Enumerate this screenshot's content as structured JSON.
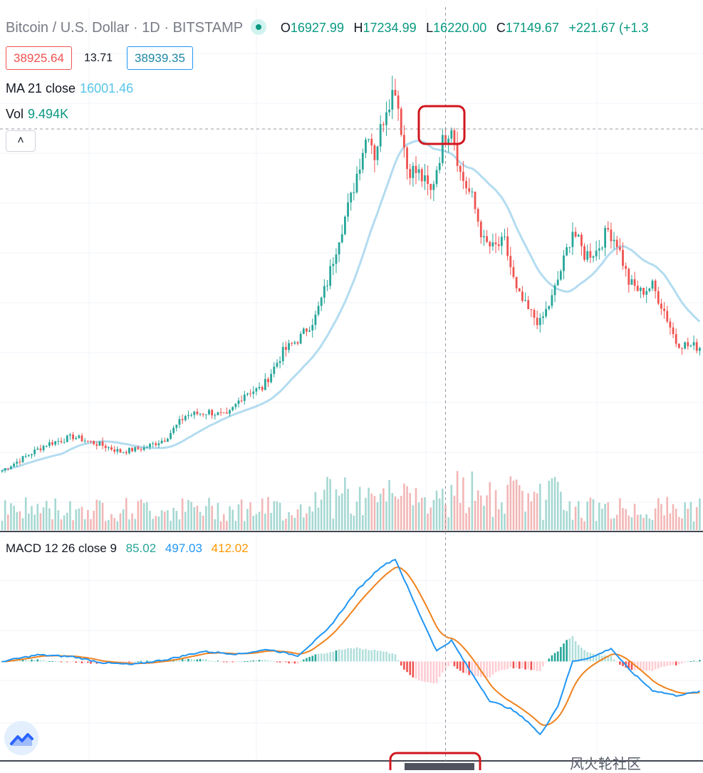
{
  "header": {
    "symbol": "Bitcoin / U.S. Dollar",
    "interval": "1D",
    "exchange": "BITSTAMP",
    "sep": "·",
    "o_label": "O",
    "o_value": "16927.99",
    "h_label": "H",
    "h_value": "17234.99",
    "l_label": "L",
    "l_value": "16220.00",
    "c_label": "C",
    "c_value": "17149.67",
    "change": "+221.67 (+1.3"
  },
  "prices": {
    "bid": "38925.64",
    "spread": "13.71",
    "ask": "38939.35"
  },
  "indicators": {
    "ma_label": "MA 21 close",
    "ma_value": "16001.46",
    "vol_label": "Vol",
    "vol_value": "9.494K",
    "collapse_icon": "˄",
    "macd_label": "MACD 12 26 close 9",
    "macd_hist": "85.02",
    "macd_value": "497.03",
    "macd_signal": "412.02"
  },
  "colors": {
    "up": "#26a69a",
    "down": "#ef5350",
    "ma": "#b3dcf0",
    "macd": "#2196f3",
    "signal": "#f0821e",
    "highlight": "#d0161e"
  },
  "icons": {
    "logo": "tradingview-logo-icon"
  },
  "watermark": "风火轮社区",
  "chart_data": {
    "type": "candlestick",
    "price_anchors": [
      {
        "i": 0,
        "c": 8700
      },
      {
        "i": 15,
        "c": 10800
      },
      {
        "i": 24,
        "c": 11400
      },
      {
        "i": 34,
        "c": 10700
      },
      {
        "i": 40,
        "c": 10200
      },
      {
        "i": 48,
        "c": 10500
      },
      {
        "i": 55,
        "c": 11200
      },
      {
        "i": 62,
        "c": 13100
      },
      {
        "i": 70,
        "c": 13400
      },
      {
        "i": 76,
        "c": 13000
      },
      {
        "i": 82,
        "c": 14900
      },
      {
        "i": 88,
        "c": 15300
      },
      {
        "i": 95,
        "c": 18200
      },
      {
        "i": 101,
        "c": 19400
      },
      {
        "i": 106,
        "c": 21000
      },
      {
        "i": 110,
        "c": 23800
      },
      {
        "i": 114,
        "c": 27500
      },
      {
        "i": 118,
        "c": 30500
      },
      {
        "i": 122,
        "c": 34500
      },
      {
        "i": 124,
        "c": 36000
      },
      {
        "i": 126,
        "c": 34000
      },
      {
        "i": 130,
        "c": 38000
      },
      {
        "i": 133,
        "c": 39500
      },
      {
        "i": 137,
        "c": 33000
      },
      {
        "i": 141,
        "c": 32500
      },
      {
        "i": 145,
        "c": 31000
      },
      {
        "i": 149,
        "c": 35000
      },
      {
        "i": 152,
        "c": 36500
      },
      {
        "i": 155,
        "c": 32500
      },
      {
        "i": 159,
        "c": 30500
      },
      {
        "i": 163,
        "c": 27000
      },
      {
        "i": 166,
        "c": 26500
      },
      {
        "i": 170,
        "c": 27000
      },
      {
        "i": 174,
        "c": 23000
      },
      {
        "i": 178,
        "c": 21500
      },
      {
        "i": 182,
        "c": 20500
      },
      {
        "i": 186,
        "c": 22500
      },
      {
        "i": 190,
        "c": 25500
      },
      {
        "i": 193,
        "c": 28000
      },
      {
        "i": 197,
        "c": 26000
      },
      {
        "i": 201,
        "c": 26300
      },
      {
        "i": 205,
        "c": 28000
      },
      {
        "i": 208,
        "c": 27000
      },
      {
        "i": 212,
        "c": 23800
      },
      {
        "i": 216,
        "c": 23000
      },
      {
        "i": 220,
        "c": 23500
      },
      {
        "i": 224,
        "c": 21500
      },
      {
        "i": 228,
        "c": 19000
      },
      {
        "i": 232,
        "c": 18700
      },
      {
        "i": 236,
        "c": 18600
      }
    ],
    "macd_anchors": [
      {
        "i": 0,
        "m": 0
      },
      {
        "i": 12,
        "m": 250
      },
      {
        "i": 24,
        "m": 180
      },
      {
        "i": 34,
        "m": -50
      },
      {
        "i": 44,
        "m": -120
      },
      {
        "i": 56,
        "m": 80
      },
      {
        "i": 68,
        "m": 380
      },
      {
        "i": 80,
        "m": 280
      },
      {
        "i": 90,
        "m": 460
      },
      {
        "i": 100,
        "m": 220
      },
      {
        "i": 110,
        "m": 1200
      },
      {
        "i": 120,
        "m": 2700
      },
      {
        "i": 128,
        "m": 3600
      },
      {
        "i": 133,
        "m": 3900
      },
      {
        "i": 140,
        "m": 2100
      },
      {
        "i": 147,
        "m": 400
      },
      {
        "i": 152,
        "m": 800
      },
      {
        "i": 158,
        "m": -300
      },
      {
        "i": 165,
        "m": -1500
      },
      {
        "i": 172,
        "m": -1800
      },
      {
        "i": 178,
        "m": -2300
      },
      {
        "i": 182,
        "m": -2800
      },
      {
        "i": 188,
        "m": -1700
      },
      {
        "i": 193,
        "m": 0
      },
      {
        "i": 200,
        "m": 180
      },
      {
        "i": 206,
        "m": 500
      },
      {
        "i": 212,
        "m": -300
      },
      {
        "i": 220,
        "m": -1100
      },
      {
        "i": 228,
        "m": -1300
      },
      {
        "i": 236,
        "m": -1150
      }
    ],
    "ma_period": 21,
    "ylim": [
      7000,
      41000
    ],
    "macd_ylim": [
      -3300,
      4300
    ],
    "highlight_index": 150
  }
}
